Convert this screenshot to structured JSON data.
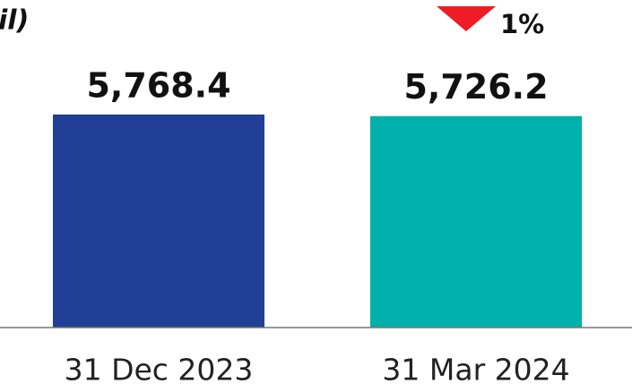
{
  "chart_data": {
    "type": "bar",
    "title": "il)",
    "categories": [
      "31 Dec 2023",
      "31 Mar 2024"
    ],
    "values": [
      5768.4,
      5726.2
    ],
    "value_labels": [
      "5,768.4",
      "5,726.2"
    ],
    "colors": [
      "#213f96",
      "#00b0aa"
    ],
    "ylim": [
      0,
      6000
    ],
    "change_label": "1%",
    "change_color": "#ee1c25"
  }
}
